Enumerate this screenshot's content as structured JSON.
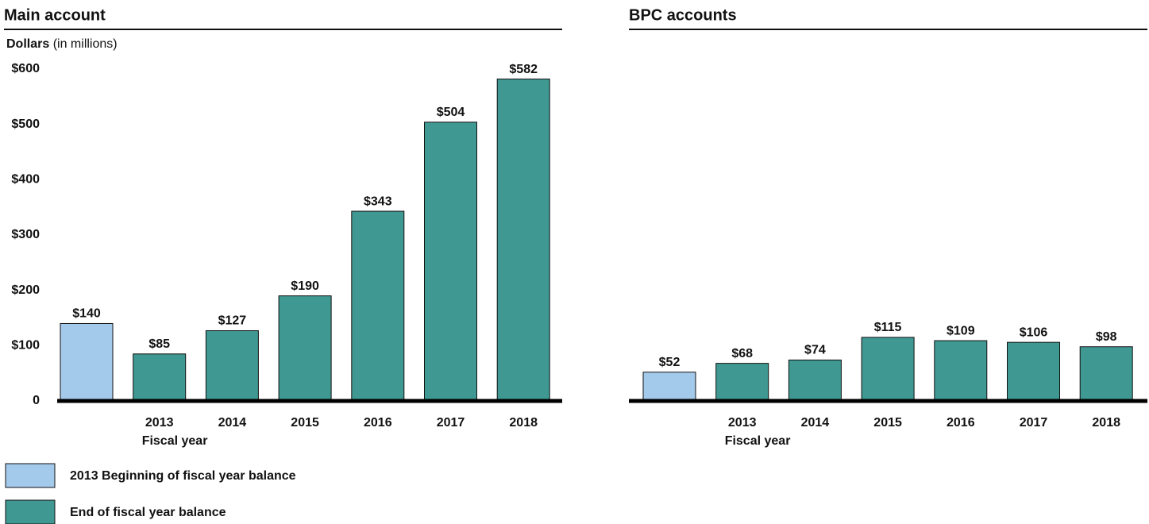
{
  "chart_data": [
    {
      "type": "bar",
      "title": "Main account",
      "ylabel": "Dollars",
      "ylabel_unit": "(in millions)",
      "xlabel": "Fiscal year",
      "categories": [
        null,
        "2013",
        "2014",
        "2015",
        "2016",
        "2017",
        "2018"
      ],
      "values": [
        140,
        85,
        127,
        190,
        343,
        504,
        582
      ],
      "value_labels": [
        "$140",
        "$85",
        "$127",
        "$190",
        "$343",
        "$504",
        "$582"
      ],
      "colors": [
        "#a3c9eb",
        "#3f9891",
        "#3f9891",
        "#3f9891",
        "#3f9891",
        "#3f9891",
        "#3f9891"
      ],
      "ylim": [
        0,
        600
      ],
      "yticks": [
        0,
        {
          "value": 100,
          "label": "$100"
        },
        {
          "value": 200,
          "label": "$200"
        },
        {
          "value": 300,
          "label": "$300"
        },
        {
          "value": 400,
          "label": "$400"
        },
        {
          "value": 500,
          "label": "$500"
        },
        {
          "value": 600,
          "label": "$600"
        }
      ]
    },
    {
      "type": "bar",
      "title": "BPC accounts",
      "xlabel": "Fiscal year",
      "categories": [
        null,
        "2013",
        "2014",
        "2015",
        "2016",
        "2017",
        "2018"
      ],
      "values": [
        52,
        68,
        74,
        115,
        109,
        106,
        98
      ],
      "value_labels": [
        "$52",
        "$68",
        "$74",
        "$115",
        "$109",
        "$106",
        "$98"
      ],
      "colors": [
        "#a3c9eb",
        "#3f9891",
        "#3f9891",
        "#3f9891",
        "#3f9891",
        "#3f9891",
        "#3f9891"
      ],
      "ylim": [
        0,
        600
      ]
    }
  ],
  "legend": [
    {
      "name": "2013 Beginning of fiscal year balance",
      "color": "#a3c9eb"
    },
    {
      "name": "End of fiscal year balance",
      "color": "#3f9891"
    }
  ]
}
